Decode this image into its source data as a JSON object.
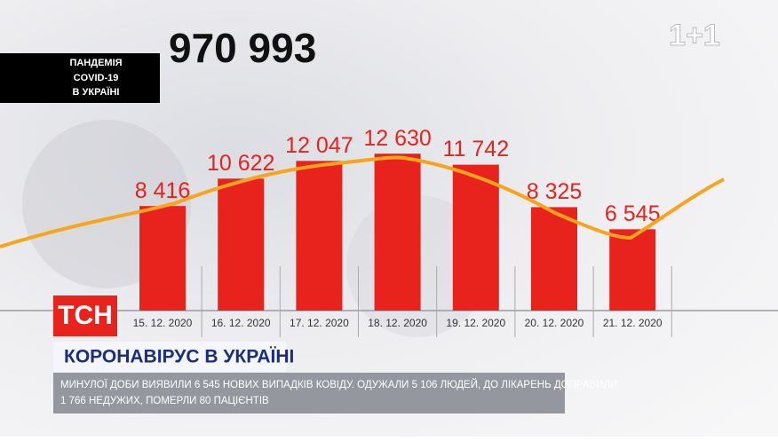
{
  "header": {
    "total": "970 993",
    "badge": [
      "ПАНДЕМІЯ",
      "COVID-19",
      "В УКРАЇНІ"
    ],
    "channel": "1+1"
  },
  "chart_data": {
    "type": "bar",
    "categories": [
      "15. 12. 2020",
      "16. 12. 2020",
      "17. 12. 2020",
      "18. 12. 2020",
      "19. 12. 2020",
      "20. 12. 2020",
      "21. 12. 2020"
    ],
    "values": [
      8416,
      10622,
      12047,
      12630,
      11742,
      8325,
      6545
    ],
    "value_labels": [
      "8 416",
      "10 622",
      "12 047",
      "12 630",
      "11 742",
      "8 325",
      "6 545"
    ],
    "color": "#e8231e"
  },
  "lower_third": {
    "logo": "ТСН",
    "headline": "КОРОНАВІРУС В УКРАЇНІ",
    "ticker": [
      "МИНУЛОЇ ДОБИ ВИЯВИЛИ 6 545 НОВИХ ВИПАДКІВ КОВІДУ. ОДУЖАЛИ 5 106 ЛЮДЕЙ, ДО ЛІКАРЕНЬ ДОПРАВИЛИ",
      "1 766 НЕДУЖИХ, ПОМЕРЛИ 80 ПАЦІЄНТІВ"
    ]
  }
}
